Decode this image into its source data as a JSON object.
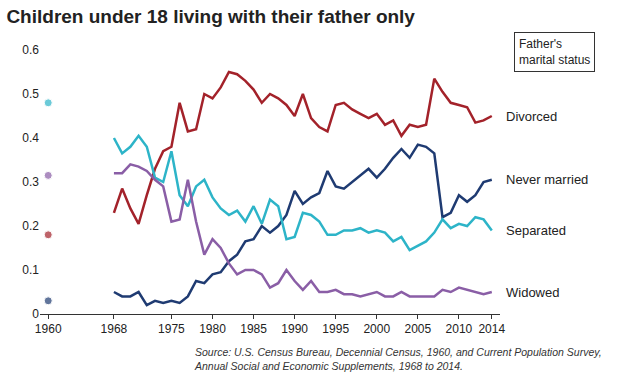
{
  "chart_data": {
    "type": "line",
    "title": "Children under 18 living with their father only",
    "x": [
      1960,
      1961,
      1962,
      1963,
      1964,
      1965,
      1966,
      1967,
      1968,
      1969,
      1970,
      1971,
      1972,
      1973,
      1974,
      1975,
      1976,
      1977,
      1978,
      1979,
      1980,
      1981,
      1982,
      1983,
      1984,
      1985,
      1986,
      1987,
      1988,
      1989,
      1990,
      1991,
      1992,
      1993,
      1994,
      1995,
      1996,
      1997,
      1998,
      1999,
      2000,
      2001,
      2002,
      2003,
      2004,
      2005,
      2006,
      2007,
      2008,
      2009,
      2010,
      2011,
      2012,
      2013,
      2014
    ],
    "series": [
      {
        "name": "Divorced",
        "color": "#a3222a",
        "values": [
          0.18,
          null,
          null,
          null,
          null,
          null,
          null,
          null,
          0.23,
          0.285,
          0.24,
          0.205,
          0.27,
          0.33,
          0.37,
          0.38,
          0.48,
          0.415,
          0.42,
          0.5,
          0.49,
          0.515,
          0.55,
          0.545,
          0.53,
          0.51,
          0.48,
          0.5,
          0.49,
          0.475,
          0.45,
          0.5,
          0.445,
          0.425,
          0.415,
          0.475,
          0.48,
          0.465,
          0.455,
          0.445,
          0.455,
          0.43,
          0.44,
          0.405,
          0.43,
          0.425,
          0.43,
          0.535,
          0.505,
          0.48,
          0.475,
          0.47,
          0.435,
          0.44,
          0.45
        ]
      },
      {
        "name": "Never married",
        "color": "#1f3b72",
        "values": [
          0.03,
          null,
          null,
          null,
          null,
          null,
          null,
          null,
          0.05,
          0.04,
          0.04,
          0.05,
          0.02,
          0.03,
          0.025,
          0.03,
          0.025,
          0.04,
          0.075,
          0.07,
          0.09,
          0.095,
          0.12,
          0.135,
          0.165,
          0.17,
          0.2,
          0.185,
          0.2,
          0.225,
          0.28,
          0.25,
          0.265,
          0.275,
          0.325,
          0.29,
          0.285,
          0.3,
          0.315,
          0.33,
          0.31,
          0.33,
          0.355,
          0.375,
          0.355,
          0.385,
          0.38,
          0.365,
          0.22,
          0.23,
          0.27,
          0.255,
          0.27,
          0.3,
          0.305
        ]
      },
      {
        "name": "Separated",
        "color": "#2db4c8",
        "values": [
          0.48,
          null,
          null,
          null,
          null,
          null,
          null,
          null,
          0.4,
          0.365,
          0.38,
          0.405,
          0.38,
          0.31,
          0.3,
          0.37,
          0.27,
          0.245,
          0.29,
          0.305,
          0.265,
          0.24,
          0.225,
          0.235,
          0.21,
          0.245,
          0.205,
          0.26,
          0.245,
          0.17,
          0.175,
          0.23,
          0.225,
          0.21,
          0.18,
          0.18,
          0.19,
          0.19,
          0.195,
          0.185,
          0.19,
          0.185,
          0.165,
          0.175,
          0.145,
          0.155,
          0.165,
          0.185,
          0.215,
          0.195,
          0.205,
          0.2,
          0.22,
          0.215,
          0.19
        ]
      },
      {
        "name": "Widowed",
        "color": "#8a5ea6",
        "values": [
          0.315,
          null,
          null,
          null,
          null,
          null,
          null,
          null,
          0.32,
          0.32,
          0.34,
          0.335,
          0.325,
          0.305,
          0.29,
          0.21,
          0.215,
          0.305,
          0.21,
          0.135,
          0.17,
          0.15,
          0.115,
          0.09,
          0.1,
          0.1,
          0.09,
          0.06,
          0.07,
          0.1,
          0.075,
          0.055,
          0.075,
          0.05,
          0.05,
          0.055,
          0.045,
          0.045,
          0.04,
          0.045,
          0.05,
          0.04,
          0.04,
          0.05,
          0.04,
          0.04,
          0.04,
          0.04,
          0.055,
          0.05,
          0.06,
          0.055,
          0.05,
          0.045,
          0.05
        ]
      }
    ],
    "xlim": [
      1959,
      2015
    ],
    "xticks": [
      1960,
      1968,
      1975,
      1980,
      1985,
      1990,
      1995,
      2000,
      2005,
      2010,
      2014
    ],
    "ylim": [
      0,
      0.6
    ],
    "yticks": [
      0,
      0.1,
      0.2,
      0.3,
      0.4,
      0.5,
      0.6
    ],
    "grid": false,
    "annotations": [
      {
        "text": "Father's marital status"
      }
    ],
    "source": [
      "Source: U.S. Census Bureau, Decennial Census, 1960, and Current Population Survey,",
      "Annual Social and Economic Supplements, 1968 to 2014."
    ]
  }
}
